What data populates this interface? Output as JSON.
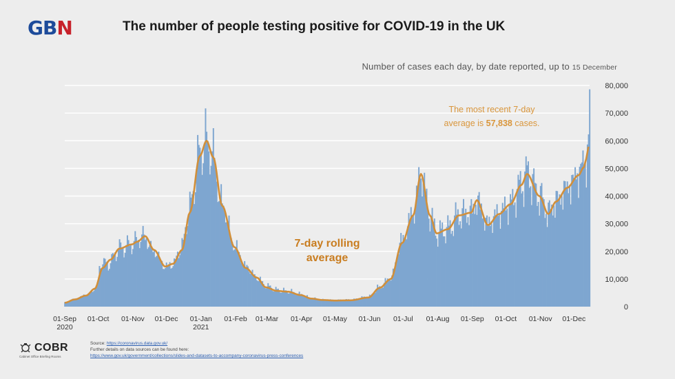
{
  "header": {
    "logo_g": "GB",
    "logo_n": "N",
    "title": "The number of people testing positive for COVID-19 in the UK",
    "subtitle_main": "Number of cases each day, by date reported, up to ",
    "subtitle_date": "15 December"
  },
  "annotation": {
    "line1": "The most recent 7-day",
    "line2_prefix": "average is ",
    "line2_value": "57,838",
    "line2_suffix": " cases."
  },
  "rolling_label": {
    "line1": "7-day rolling",
    "line2": "average"
  },
  "footer": {
    "cobr_name": "COBR",
    "cobr_tagline": "Cabinet Office Briefing Rooms",
    "source_label": "Source: ",
    "source_link": "https://coronavirus.data.gov.uk/",
    "further_details": "Further details on data sources can be found here:",
    "details_link": "https://www.gov.uk/government/collections/slides-and-datasets-to-accompany-coronavirus-press-conferences"
  },
  "colors": {
    "bars": "#7ea6d0",
    "bars_edge": "#6f98c4",
    "average_line": "#d18f3a",
    "annotation_text": "#d9963c",
    "rolling_label": "#c97d20",
    "grid": "#ffffff",
    "tick_text": "#333333"
  },
  "chart_data": {
    "type": "bar",
    "title": "The number of people testing positive for COVID-19 in the UK",
    "subtitle": "Number of cases each day, by date reported, up to 15 December",
    "ylim": [
      0,
      80000
    ],
    "y_ticks": [
      "0",
      "10,000",
      "20,000",
      "30,000",
      "40,000",
      "50,000",
      "60,000",
      "70,000",
      "80,000"
    ],
    "x_tick_labels": [
      {
        "date": "2020-09-01",
        "label": "01-Sep",
        "sublabel": "2020"
      },
      {
        "date": "2020-10-01",
        "label": "01-Oct",
        "sublabel": ""
      },
      {
        "date": "2020-11-01",
        "label": "01-Nov",
        "sublabel": ""
      },
      {
        "date": "2020-12-01",
        "label": "01-Dec",
        "sublabel": ""
      },
      {
        "date": "2021-01-01",
        "label": "01-Jan",
        "sublabel": "2021"
      },
      {
        "date": "2021-02-01",
        "label": "01-Feb",
        "sublabel": ""
      },
      {
        "date": "2021-03-01",
        "label": "01-Mar",
        "sublabel": ""
      },
      {
        "date": "2021-04-01",
        "label": "01-Apr",
        "sublabel": ""
      },
      {
        "date": "2021-05-01",
        "label": "01-May",
        "sublabel": ""
      },
      {
        "date": "2021-06-01",
        "label": "01-Jun",
        "sublabel": ""
      },
      {
        "date": "2021-07-01",
        "label": "01-Jul",
        "sublabel": ""
      },
      {
        "date": "2021-08-01",
        "label": "01-Aug",
        "sublabel": ""
      },
      {
        "date": "2021-09-01",
        "label": "01-Sep",
        "sublabel": ""
      },
      {
        "date": "2021-10-01",
        "label": "01-Oct",
        "sublabel": ""
      },
      {
        "date": "2021-11-01",
        "label": "01-Nov",
        "sublabel": ""
      },
      {
        "date": "2021-12-01",
        "label": "01-Dec",
        "sublabel": ""
      }
    ],
    "start_date": "2020-09-01",
    "end_date": "2021-12-15",
    "series": [
      {
        "name": "Daily cases",
        "kind": "bars",
        "anchors": [
          [
            "2020-09-01",
            1500
          ],
          [
            "2020-09-10",
            2800
          ],
          [
            "2020-09-20",
            4200
          ],
          [
            "2020-09-30",
            7000
          ],
          [
            "2020-10-03",
            16000
          ],
          [
            "2020-10-10",
            15500
          ],
          [
            "2020-10-20",
            21000
          ],
          [
            "2020-10-31",
            22500
          ],
          [
            "2020-11-05",
            24000
          ],
          [
            "2020-11-10",
            25500
          ],
          [
            "2020-11-20",
            20000
          ],
          [
            "2020-11-30",
            14500
          ],
          [
            "2020-12-07",
            15500
          ],
          [
            "2020-12-15",
            22000
          ],
          [
            "2020-12-22",
            36000
          ],
          [
            "2020-12-31",
            55000
          ],
          [
            "2021-01-05",
            60000
          ],
          [
            "2021-01-10",
            56000
          ],
          [
            "2021-01-20",
            37000
          ],
          [
            "2021-01-31",
            22000
          ],
          [
            "2021-02-10",
            14500
          ],
          [
            "2021-02-20",
            10500
          ],
          [
            "2021-02-28",
            7500
          ],
          [
            "2021-03-10",
            6000
          ],
          [
            "2021-03-20",
            5500
          ],
          [
            "2021-03-31",
            4500
          ],
          [
            "2021-04-10",
            3000
          ],
          [
            "2021-04-20",
            2500
          ],
          [
            "2021-05-01",
            2300
          ],
          [
            "2021-05-15",
            2400
          ],
          [
            "2021-05-31",
            3500
          ],
          [
            "2021-06-10",
            7000
          ],
          [
            "2021-06-20",
            10500
          ],
          [
            "2021-06-30",
            24000
          ],
          [
            "2021-07-10",
            34000
          ],
          [
            "2021-07-17",
            48000
          ],
          [
            "2021-07-25",
            33000
          ],
          [
            "2021-07-31",
            26500
          ],
          [
            "2021-08-10",
            28000
          ],
          [
            "2021-08-20",
            33000
          ],
          [
            "2021-08-31",
            34000
          ],
          [
            "2021-09-05",
            38000
          ],
          [
            "2021-09-15",
            30000
          ],
          [
            "2021-09-25",
            34000
          ],
          [
            "2021-10-05",
            37000
          ],
          [
            "2021-10-15",
            44000
          ],
          [
            "2021-10-20",
            48000
          ],
          [
            "2021-10-31",
            40000
          ],
          [
            "2021-11-08",
            34000
          ],
          [
            "2021-11-15",
            38000
          ],
          [
            "2021-11-25",
            43000
          ],
          [
            "2021-12-05",
            48000
          ],
          [
            "2021-12-10",
            52000
          ],
          [
            "2021-12-12",
            54000
          ],
          [
            "2021-12-14",
            59000
          ],
          [
            "2021-12-15",
            78600
          ]
        ]
      },
      {
        "name": "7-day rolling average",
        "kind": "line",
        "anchors": [
          [
            "2020-09-01",
            1400
          ],
          [
            "2020-09-10",
            2600
          ],
          [
            "2020-09-20",
            4000
          ],
          [
            "2020-09-28",
            6500
          ],
          [
            "2020-10-05",
            14000
          ],
          [
            "2020-10-12",
            17000
          ],
          [
            "2020-10-20",
            21000
          ],
          [
            "2020-10-31",
            22500
          ],
          [
            "2020-11-05",
            23500
          ],
          [
            "2020-11-12",
            25500
          ],
          [
            "2020-11-20",
            20500
          ],
          [
            "2020-11-30",
            14500
          ],
          [
            "2020-12-07",
            15500
          ],
          [
            "2020-12-15",
            20500
          ],
          [
            "2020-12-22",
            34000
          ],
          [
            "2020-12-31",
            54500
          ],
          [
            "2021-01-06",
            60000
          ],
          [
            "2021-01-12",
            54000
          ],
          [
            "2021-01-20",
            36500
          ],
          [
            "2021-01-31",
            21500
          ],
          [
            "2021-02-10",
            14000
          ],
          [
            "2021-02-20",
            10500
          ],
          [
            "2021-02-28",
            7000
          ],
          [
            "2021-03-10",
            5700
          ],
          [
            "2021-03-20",
            5400
          ],
          [
            "2021-03-31",
            4200
          ],
          [
            "2021-04-10",
            2900
          ],
          [
            "2021-04-20",
            2400
          ],
          [
            "2021-05-01",
            2200
          ],
          [
            "2021-05-15",
            2300
          ],
          [
            "2021-05-31",
            3300
          ],
          [
            "2021-06-10",
            6800
          ],
          [
            "2021-06-20",
            10000
          ],
          [
            "2021-06-30",
            23000
          ],
          [
            "2021-07-10",
            33000
          ],
          [
            "2021-07-17",
            48000
          ],
          [
            "2021-07-25",
            33000
          ],
          [
            "2021-07-31",
            26500
          ],
          [
            "2021-08-10",
            28000
          ],
          [
            "2021-08-20",
            33000
          ],
          [
            "2021-08-31",
            34000
          ],
          [
            "2021-09-05",
            38500
          ],
          [
            "2021-09-15",
            29500
          ],
          [
            "2021-09-25",
            33500
          ],
          [
            "2021-10-05",
            37000
          ],
          [
            "2021-10-15",
            44000
          ],
          [
            "2021-10-20",
            48000
          ],
          [
            "2021-10-31",
            40000
          ],
          [
            "2021-11-08",
            33500
          ],
          [
            "2021-11-15",
            38000
          ],
          [
            "2021-11-25",
            43000
          ],
          [
            "2021-12-05",
            47500
          ],
          [
            "2021-12-10",
            50500
          ],
          [
            "2021-12-12",
            53500
          ],
          [
            "2021-12-14",
            57838
          ]
        ]
      }
    ],
    "annotations": [
      "The most recent 7-day average is 57,838 cases.",
      "7-day rolling average"
    ]
  }
}
